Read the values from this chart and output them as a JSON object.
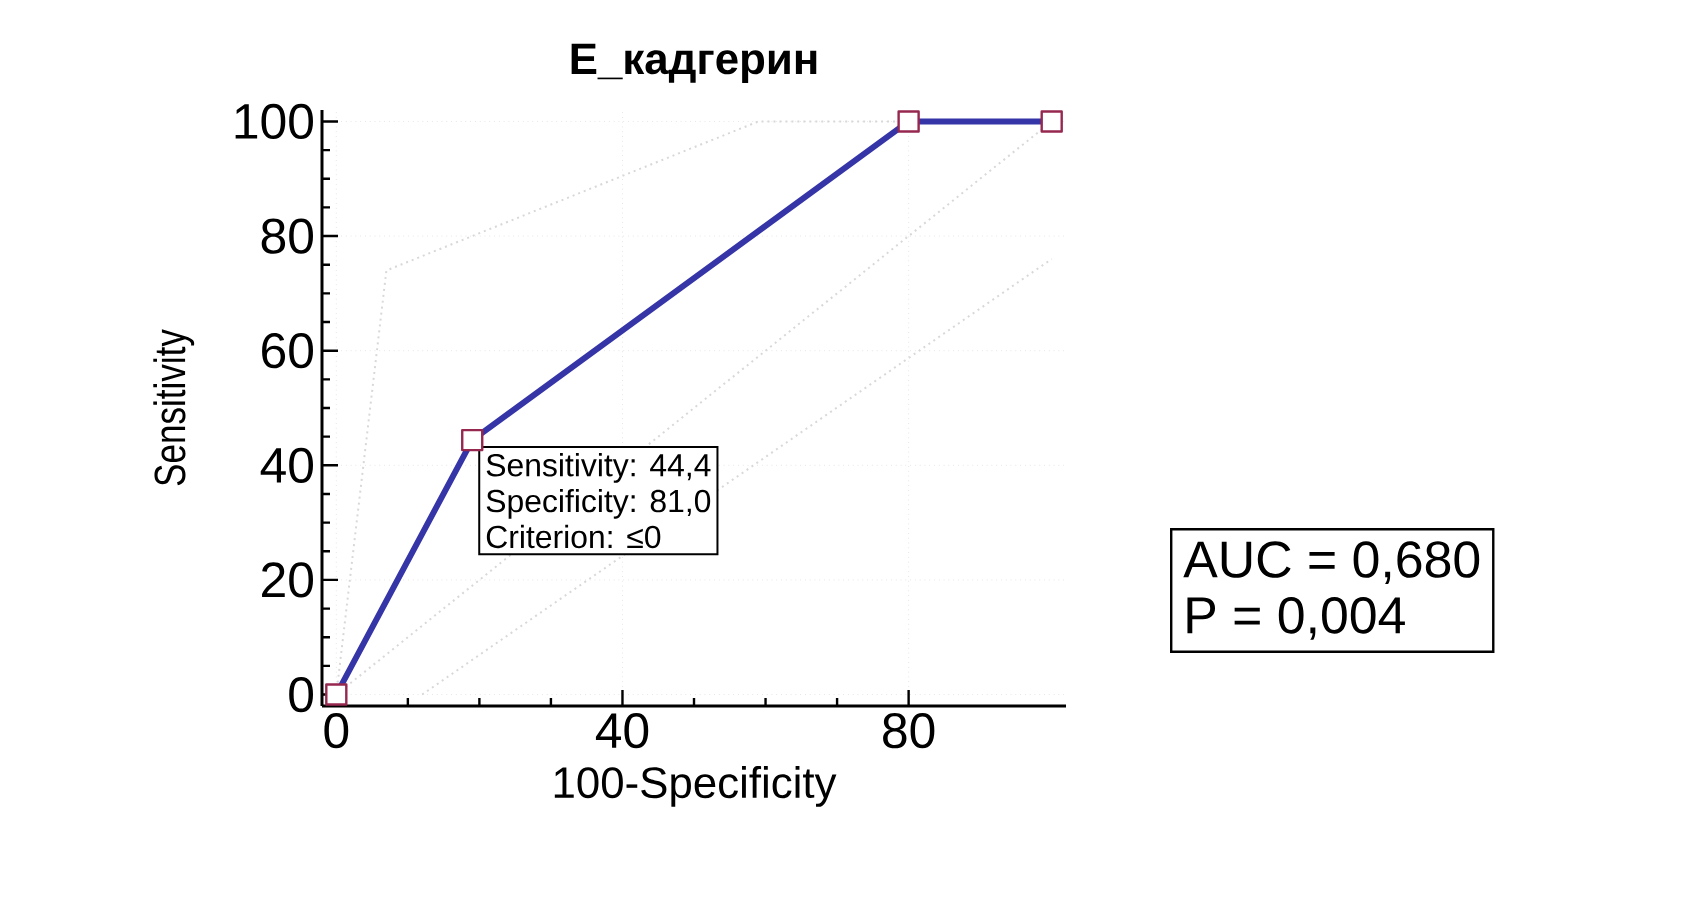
{
  "chart_data": {
    "type": "line",
    "title": "Е_кадгерин",
    "xlabel": "100-Specificity",
    "ylabel": "Sensitivity",
    "xlim": [
      -2,
      102
    ],
    "ylim": [
      -2,
      102
    ],
    "xticks": [
      0,
      40,
      80
    ],
    "yticks": [
      0,
      20,
      40,
      60,
      80,
      100
    ],
    "grid": true,
    "marker": "square",
    "series": [
      {
        "color": "#3535a8",
        "x": [
          0,
          19,
          80,
          100
        ],
        "values": [
          0,
          44.4,
          100,
          100
        ]
      },
      {
        "color": "#d8d8d8",
        "type": "line",
        "marker": "none",
        "line_style": "dotted",
        "x": [
          0,
          7,
          59,
          100
        ],
        "values": [
          0,
          74,
          100,
          100
        ]
      },
      {
        "color": "#d8d8d8",
        "type": "line",
        "marker": "none",
        "line_style": "dotted",
        "x": [
          12,
          100
        ],
        "values": [
          0,
          76
        ]
      },
      {
        "color": "#d8d8d8",
        "type": "line",
        "marker": "none",
        "line_style": "dotted",
        "x": [
          0,
          100
        ],
        "values": [
          0,
          100
        ]
      }
    ],
    "annotations": [
      "AUC = 0,680",
      "P = 0,004",
      {
        "text": "Sensitivity: 44,4",
        "x": 19,
        "y": 44.4
      },
      "Specificity: 81,0",
      "Criterion: ≤0"
    ]
  }
}
